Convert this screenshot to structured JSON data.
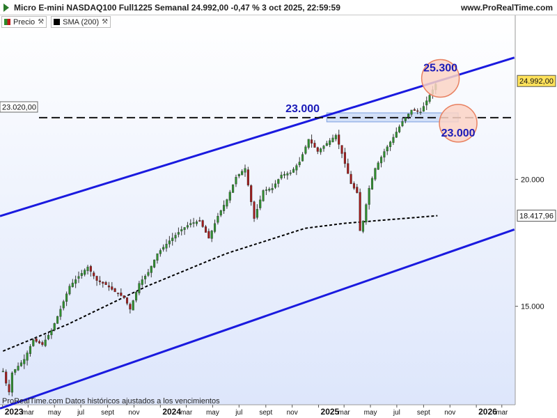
{
  "header": {
    "title": "Micro E-mini NASDAQ100 Full1225 Semanal 24.992,00 -0,47 % 3 oct 2025, 22:59:59",
    "site": "www.ProRealTime.com"
  },
  "legend": [
    {
      "label": "Precio",
      "color": "#2a8a2a"
    },
    {
      "label": "SMA (200)",
      "color": "#000000"
    }
  ],
  "footer": "ProRealTime.com  Datos históricos ajustados a los vencimientos",
  "colors": {
    "up": "#2f8f2f",
    "down": "#a01a1a",
    "channel": "#1a1adf",
    "sma": "#000000",
    "annotation": "#1a1ab8",
    "circle_fill": "#fbd3c6",
    "circle_stroke": "#e88060",
    "zone_fill": "#c7d8f5",
    "price_tag": "#ffe25a"
  },
  "chart_data": {
    "type": "candlestick",
    "interval": "weekly",
    "y_scale": "log",
    "ylim": [
      12000,
      29000
    ],
    "y_ticks": [
      {
        "value": 15000,
        "label": "15.000"
      },
      {
        "value": 20000,
        "label": "20.000"
      }
    ],
    "price_labels": [
      {
        "value": 24992,
        "label": "24.992,00",
        "style": "last_price"
      },
      {
        "value": 18418,
        "label": "18.417,96",
        "style": "sma"
      }
    ],
    "left_level_label": {
      "value": 23020,
      "label": "23.020,00"
    },
    "x_labels": [
      {
        "date": "2023-01-01",
        "label": "2023",
        "bold": true
      },
      {
        "date": "2023-03-01",
        "label": "mar",
        "bold": false
      },
      {
        "date": "2023-05-01",
        "label": "may",
        "bold": false
      },
      {
        "date": "2023-07-01",
        "label": "jul",
        "bold": false
      },
      {
        "date": "2023-09-01",
        "label": "sept",
        "bold": false
      },
      {
        "date": "2023-11-01",
        "label": "nov",
        "bold": false
      },
      {
        "date": "2024-01-01",
        "label": "2024",
        "bold": true
      },
      {
        "date": "2024-03-01",
        "label": "mar",
        "bold": false
      },
      {
        "date": "2024-05-01",
        "label": "may",
        "bold": false
      },
      {
        "date": "2024-07-01",
        "label": "jul",
        "bold": false
      },
      {
        "date": "2024-09-01",
        "label": "sept",
        "bold": false
      },
      {
        "date": "2024-11-01",
        "label": "nov",
        "bold": false
      },
      {
        "date": "2025-01-01",
        "label": "2025",
        "bold": true
      },
      {
        "date": "2025-03-01",
        "label": "mar",
        "bold": false
      },
      {
        "date": "2025-05-01",
        "label": "may",
        "bold": false
      },
      {
        "date": "2025-07-01",
        "label": "jul",
        "bold": false
      },
      {
        "date": "2025-09-01",
        "label": "sept",
        "bold": false
      },
      {
        "date": "2025-11-01",
        "label": "nov",
        "bold": false
      },
      {
        "date": "2026-01-01",
        "label": "2026",
        "bold": true
      },
      {
        "date": "2026-03-01",
        "label": "mar",
        "bold": false
      }
    ],
    "price_path": [
      [
        "2023-01-02",
        12950
      ],
      [
        "2023-01-09",
        12600
      ],
      [
        "2023-01-16",
        12350
      ],
      [
        "2023-01-23",
        12900
      ],
      [
        "2023-02-06",
        13100
      ],
      [
        "2023-02-20",
        13300
      ],
      [
        "2023-03-13",
        13900
      ],
      [
        "2023-04-03",
        13750
      ],
      [
        "2023-04-24",
        14200
      ],
      [
        "2023-05-15",
        14900
      ],
      [
        "2023-06-05",
        15700
      ],
      [
        "2023-06-26",
        16050
      ],
      [
        "2023-07-17",
        16400
      ],
      [
        "2023-08-07",
        15900
      ],
      [
        "2023-08-28",
        15750
      ],
      [
        "2023-09-18",
        15500
      ],
      [
        "2023-10-09",
        15300
      ],
      [
        "2023-10-23",
        14900
      ],
      [
        "2023-11-13",
        15800
      ],
      [
        "2023-12-04",
        16200
      ],
      [
        "2023-12-25",
        16900
      ],
      [
        "2024-01-22",
        17400
      ],
      [
        "2024-02-19",
        17850
      ],
      [
        "2024-03-11",
        18100
      ],
      [
        "2024-04-01",
        18200
      ],
      [
        "2024-04-22",
        17500
      ],
      [
        "2024-05-13",
        18400
      ],
      [
        "2024-06-03",
        19100
      ],
      [
        "2024-06-24",
        20100
      ],
      [
        "2024-07-15",
        20500
      ],
      [
        "2024-08-05",
        18300
      ],
      [
        "2024-08-26",
        19500
      ],
      [
        "2024-09-16",
        19600
      ],
      [
        "2024-10-07",
        20200
      ],
      [
        "2024-10-28",
        20300
      ],
      [
        "2024-11-18",
        20800
      ],
      [
        "2024-12-09",
        21900
      ],
      [
        "2024-12-30",
        21300
      ],
      [
        "2025-01-20",
        21700
      ],
      [
        "2025-02-10",
        22100
      ],
      [
        "2025-02-24",
        21200
      ],
      [
        "2025-03-17",
        19800
      ],
      [
        "2025-03-31",
        19400
      ],
      [
        "2025-04-07",
        17800
      ],
      [
        "2025-04-14",
        18200
      ],
      [
        "2025-04-28",
        19600
      ],
      [
        "2025-05-12",
        20500
      ],
      [
        "2025-06-02",
        21300
      ],
      [
        "2025-06-23",
        22000
      ],
      [
        "2025-07-14",
        22800
      ],
      [
        "2025-08-04",
        23400
      ],
      [
        "2025-08-25",
        23300
      ],
      [
        "2025-09-15",
        24200
      ],
      [
        "2025-10-03",
        24992
      ]
    ],
    "sma_200": [
      [
        "2023-01-02",
        13550
      ],
      [
        "2023-06-01",
        14400
      ],
      [
        "2023-12-01",
        15700
      ],
      [
        "2024-06-01",
        16900
      ],
      [
        "2024-12-01",
        17900
      ],
      [
        "2025-03-01",
        18100
      ],
      [
        "2025-10-03",
        18418
      ]
    ],
    "channel": {
      "upper": [
        [
          "2022-12-26",
          18400
        ],
        [
          "2026-03-30",
          26350
        ]
      ],
      "lower": [
        [
          "2022-12-26",
          11900
        ],
        [
          "2026-03-30",
          17850
        ]
      ]
    },
    "horizontal_level": {
      "value": 23000,
      "style": "dashed"
    },
    "zones": [
      {
        "from": "2025-01-20",
        "to": "2025-11-20",
        "low": 22780,
        "high": 23250
      }
    ],
    "annotations": [
      {
        "label": "23.000",
        "date": "2024-11-25",
        "value": 23000,
        "circle": false
      },
      {
        "label": "25.300",
        "date": "2025-10-10",
        "value": 25300,
        "circle": true
      },
      {
        "label": "23.000",
        "date": "2025-11-20",
        "value": 23000,
        "circle": true
      }
    ]
  }
}
